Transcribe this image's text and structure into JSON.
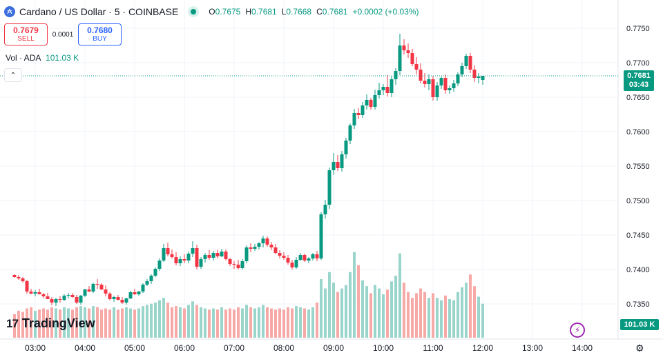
{
  "header": {
    "symbol_icon": "cardano-icon",
    "title": "Cardano / US Dollar · 5 · COINBASE",
    "status_icon": "market-open-dot-icon",
    "ohlc": {
      "o_label": "O",
      "o": "0.7675",
      "h_label": "H",
      "h": "0.7681",
      "l_label": "L",
      "l": "0.7668",
      "c_label": "C",
      "c": "0.7681",
      "change": "+0.0002 (+0.03%)"
    }
  },
  "trade": {
    "sell_price": "0.7679",
    "sell_label": "SELL",
    "spread": "0.0001",
    "buy_price": "0.7680",
    "buy_label": "BUY"
  },
  "volume": {
    "label": "Vol · ADA",
    "value": "101.03 K"
  },
  "collapse_icon": "chevron-up-icon",
  "last_price": {
    "price": "0.7681",
    "countdown": "03:43"
  },
  "volume_tag": "101.03 K",
  "logo": {
    "mark": "17",
    "text": "TradingView"
  },
  "flash_icon": "lightning-icon",
  "settings_icon": "gear-icon",
  "colors": {
    "up": "#089981",
    "down": "#f23645",
    "up_vol": "#9ad5cb",
    "down_vol": "#f7a9a7",
    "grid": "#f0f3fa"
  },
  "chart_data": {
    "type": "candlestick",
    "y_ticks": [
      "0.7750",
      "0.7700",
      "0.7650",
      "0.7600",
      "0.7550",
      "0.7500",
      "0.7450",
      "0.7400",
      "0.7350"
    ],
    "x_ticks": [
      "03:00",
      "04:00",
      "05:00",
      "06:00",
      "07:00",
      "08:00",
      "09:00",
      "10:00",
      "11:00",
      "12:00",
      "13:00",
      "14:00"
    ],
    "x_start": "02:35",
    "interval_minutes": 5,
    "candles": [
      [
        0.7392,
        0.7393,
        0.7388,
        0.7389,
        2.0
      ],
      [
        0.7389,
        0.7392,
        0.7385,
        0.7387,
        2.3
      ],
      [
        0.7387,
        0.7389,
        0.7381,
        0.7383,
        2.2
      ],
      [
        0.7383,
        0.7385,
        0.7365,
        0.7368,
        2.5
      ],
      [
        0.7368,
        0.7372,
        0.7364,
        0.7365,
        2.6
      ],
      [
        0.7365,
        0.737,
        0.7361,
        0.7367,
        2.3
      ],
      [
        0.7367,
        0.7372,
        0.7364,
        0.7364,
        2.4
      ],
      [
        0.7364,
        0.7366,
        0.7358,
        0.7361,
        2.5
      ],
      [
        0.7361,
        0.7366,
        0.7357,
        0.7357,
        2.4
      ],
      [
        0.7357,
        0.736,
        0.7348,
        0.7352,
        2.6
      ],
      [
        0.7352,
        0.7359,
        0.7347,
        0.7357,
        2.5
      ],
      [
        0.7357,
        0.7361,
        0.7352,
        0.7356,
        2.4
      ],
      [
        0.7356,
        0.7364,
        0.7354,
        0.7362,
        2.6
      ],
      [
        0.7362,
        0.7366,
        0.7358,
        0.7363,
        2.5
      ],
      [
        0.7363,
        0.7366,
        0.7359,
        0.736,
        2.4
      ],
      [
        0.736,
        0.7363,
        0.735,
        0.7352,
        2.6
      ],
      [
        0.7352,
        0.7363,
        0.7349,
        0.7362,
        2.7
      ],
      [
        0.7362,
        0.7372,
        0.736,
        0.7371,
        2.6
      ],
      [
        0.7371,
        0.7376,
        0.7367,
        0.7368,
        2.5
      ],
      [
        0.7368,
        0.7381,
        0.7366,
        0.7379,
        2.7
      ],
      [
        0.7379,
        0.7386,
        0.7372,
        0.7378,
        2.6
      ],
      [
        0.7378,
        0.738,
        0.737,
        0.7371,
        2.4
      ],
      [
        0.7371,
        0.7377,
        0.7361,
        0.7365,
        2.5
      ],
      [
        0.7365,
        0.7367,
        0.7355,
        0.7357,
        2.4
      ],
      [
        0.7357,
        0.7362,
        0.7353,
        0.736,
        2.6
      ],
      [
        0.736,
        0.7363,
        0.7355,
        0.7356,
        2.4
      ],
      [
        0.7356,
        0.736,
        0.735,
        0.7352,
        2.5
      ],
      [
        0.7352,
        0.7359,
        0.7349,
        0.7358,
        2.6
      ],
      [
        0.7358,
        0.7369,
        0.7357,
        0.7367,
        2.5
      ],
      [
        0.7367,
        0.7372,
        0.7363,
        0.7364,
        2.4
      ],
      [
        0.7364,
        0.7369,
        0.7362,
        0.7368,
        2.5
      ],
      [
        0.7368,
        0.738,
        0.7366,
        0.7378,
        2.7
      ],
      [
        0.7378,
        0.7386,
        0.7376,
        0.7383,
        2.8
      ],
      [
        0.7383,
        0.7393,
        0.7379,
        0.7391,
        2.9
      ],
      [
        0.7391,
        0.7403,
        0.7389,
        0.7401,
        3.0
      ],
      [
        0.7401,
        0.7416,
        0.7398,
        0.7413,
        3.2
      ],
      [
        0.7413,
        0.7437,
        0.7411,
        0.7431,
        3.4
      ],
      [
        0.7431,
        0.7439,
        0.7419,
        0.7422,
        3.0
      ],
      [
        0.7422,
        0.7429,
        0.7416,
        0.7418,
        2.6
      ],
      [
        0.7418,
        0.7425,
        0.7406,
        0.7409,
        2.7
      ],
      [
        0.7409,
        0.7419,
        0.7405,
        0.7415,
        2.6
      ],
      [
        0.7415,
        0.7422,
        0.7409,
        0.7413,
        2.5
      ],
      [
        0.7413,
        0.7426,
        0.7409,
        0.7423,
        2.8
      ],
      [
        0.7423,
        0.7441,
        0.7418,
        0.7431,
        3.1
      ],
      [
        0.7431,
        0.7436,
        0.74,
        0.7404,
        2.8
      ],
      [
        0.7404,
        0.7418,
        0.7401,
        0.7415,
        2.6
      ],
      [
        0.7415,
        0.7424,
        0.741,
        0.7421,
        2.5
      ],
      [
        0.7421,
        0.7428,
        0.7414,
        0.7417,
        2.4
      ],
      [
        0.7417,
        0.7427,
        0.7413,
        0.7424,
        2.5
      ],
      [
        0.7424,
        0.7429,
        0.7416,
        0.7419,
        2.4
      ],
      [
        0.7419,
        0.743,
        0.7418,
        0.7426,
        2.6
      ],
      [
        0.7426,
        0.7429,
        0.7413,
        0.7415,
        2.4
      ],
      [
        0.7415,
        0.7417,
        0.7405,
        0.7408,
        2.5
      ],
      [
        0.7408,
        0.7412,
        0.7401,
        0.7407,
        2.4
      ],
      [
        0.7407,
        0.7414,
        0.74,
        0.7402,
        2.6
      ],
      [
        0.7402,
        0.7415,
        0.74,
        0.7412,
        2.5
      ],
      [
        0.7412,
        0.7435,
        0.7409,
        0.7432,
        2.8
      ],
      [
        0.7432,
        0.7438,
        0.7425,
        0.743,
        2.6
      ],
      [
        0.743,
        0.7437,
        0.7427,
        0.7433,
        2.5
      ],
      [
        0.7433,
        0.744,
        0.7429,
        0.7438,
        2.6
      ],
      [
        0.7438,
        0.7449,
        0.7432,
        0.7445,
        2.8
      ],
      [
        0.7445,
        0.7448,
        0.7433,
        0.7436,
        2.6
      ],
      [
        0.7436,
        0.744,
        0.7428,
        0.7432,
        2.5
      ],
      [
        0.7432,
        0.7437,
        0.7422,
        0.7424,
        2.4
      ],
      [
        0.7424,
        0.7428,
        0.7416,
        0.742,
        2.5
      ],
      [
        0.742,
        0.7425,
        0.7414,
        0.7417,
        2.4
      ],
      [
        0.7417,
        0.7421,
        0.7407,
        0.741,
        2.6
      ],
      [
        0.741,
        0.7414,
        0.74,
        0.7403,
        2.5
      ],
      [
        0.7403,
        0.7418,
        0.7401,
        0.7414,
        2.7
      ],
      [
        0.7414,
        0.7424,
        0.7412,
        0.7421,
        2.6
      ],
      [
        0.7421,
        0.7423,
        0.7411,
        0.7413,
        2.5
      ],
      [
        0.7413,
        0.7418,
        0.7409,
        0.7416,
        2.4
      ],
      [
        0.7416,
        0.7424,
        0.7413,
        0.7422,
        2.6
      ],
      [
        0.7422,
        0.7427,
        0.7412,
        0.7416,
        3.0
      ],
      [
        0.7416,
        0.7483,
        0.7414,
        0.748,
        5.0
      ],
      [
        0.748,
        0.7501,
        0.7474,
        0.7494,
        4.2
      ],
      [
        0.7494,
        0.7548,
        0.7488,
        0.7544,
        5.6
      ],
      [
        0.7544,
        0.7569,
        0.7537,
        0.7556,
        4.7
      ],
      [
        0.7556,
        0.7566,
        0.7543,
        0.7547,
        3.9
      ],
      [
        0.7547,
        0.7572,
        0.7542,
        0.7567,
        4.2
      ],
      [
        0.7567,
        0.7591,
        0.7561,
        0.7587,
        4.5
      ],
      [
        0.7587,
        0.7612,
        0.7582,
        0.7609,
        5.6
      ],
      [
        0.7609,
        0.7633,
        0.7604,
        0.7627,
        7.3
      ],
      [
        0.7627,
        0.7634,
        0.7618,
        0.7624,
        6.2
      ],
      [
        0.7624,
        0.7643,
        0.762,
        0.7638,
        4.9
      ],
      [
        0.7638,
        0.7654,
        0.7632,
        0.7646,
        4.4
      ],
      [
        0.7646,
        0.7649,
        0.7632,
        0.7636,
        3.8
      ],
      [
        0.7636,
        0.7661,
        0.7632,
        0.7653,
        4.5
      ],
      [
        0.7653,
        0.7671,
        0.7648,
        0.766,
        4.2
      ],
      [
        0.766,
        0.7669,
        0.7653,
        0.7665,
        3.7
      ],
      [
        0.7665,
        0.7682,
        0.7651,
        0.7656,
        4.1
      ],
      [
        0.7656,
        0.7681,
        0.765,
        0.7676,
        4.8
      ],
      [
        0.7676,
        0.7692,
        0.7668,
        0.7688,
        5.3
      ],
      [
        0.7688,
        0.7742,
        0.7682,
        0.7725,
        7.2
      ],
      [
        0.7725,
        0.7734,
        0.7712,
        0.7718,
        4.7
      ],
      [
        0.7718,
        0.7728,
        0.7707,
        0.7714,
        3.9
      ],
      [
        0.7714,
        0.772,
        0.7695,
        0.7698,
        3.4
      ],
      [
        0.7698,
        0.7708,
        0.7683,
        0.769,
        3.8
      ],
      [
        0.769,
        0.7699,
        0.767,
        0.7674,
        4.2
      ],
      [
        0.7674,
        0.7685,
        0.7664,
        0.7669,
        3.9
      ],
      [
        0.7669,
        0.7683,
        0.766,
        0.7676,
        3.4
      ],
      [
        0.7676,
        0.7681,
        0.7645,
        0.765,
        3.8
      ],
      [
        0.765,
        0.7672,
        0.7645,
        0.7667,
        3.4
      ],
      [
        0.7667,
        0.768,
        0.7662,
        0.7678,
        3.2
      ],
      [
        0.7678,
        0.7683,
        0.7655,
        0.766,
        3.6
      ],
      [
        0.766,
        0.7667,
        0.7655,
        0.7663,
        3.3
      ],
      [
        0.7663,
        0.7675,
        0.7658,
        0.767,
        3.2
      ],
      [
        0.767,
        0.7686,
        0.7666,
        0.7683,
        3.9
      ],
      [
        0.7683,
        0.77,
        0.7679,
        0.7695,
        4.3
      ],
      [
        0.7695,
        0.7713,
        0.7691,
        0.771,
        4.7
      ],
      [
        0.771,
        0.7714,
        0.7685,
        0.769,
        5.4
      ],
      [
        0.769,
        0.7696,
        0.7672,
        0.7678,
        4.4
      ],
      [
        0.7678,
        0.7685,
        0.767,
        0.768,
        3.5
      ],
      [
        0.7675,
        0.7681,
        0.7668,
        0.7681,
        2.9
      ]
    ]
  }
}
